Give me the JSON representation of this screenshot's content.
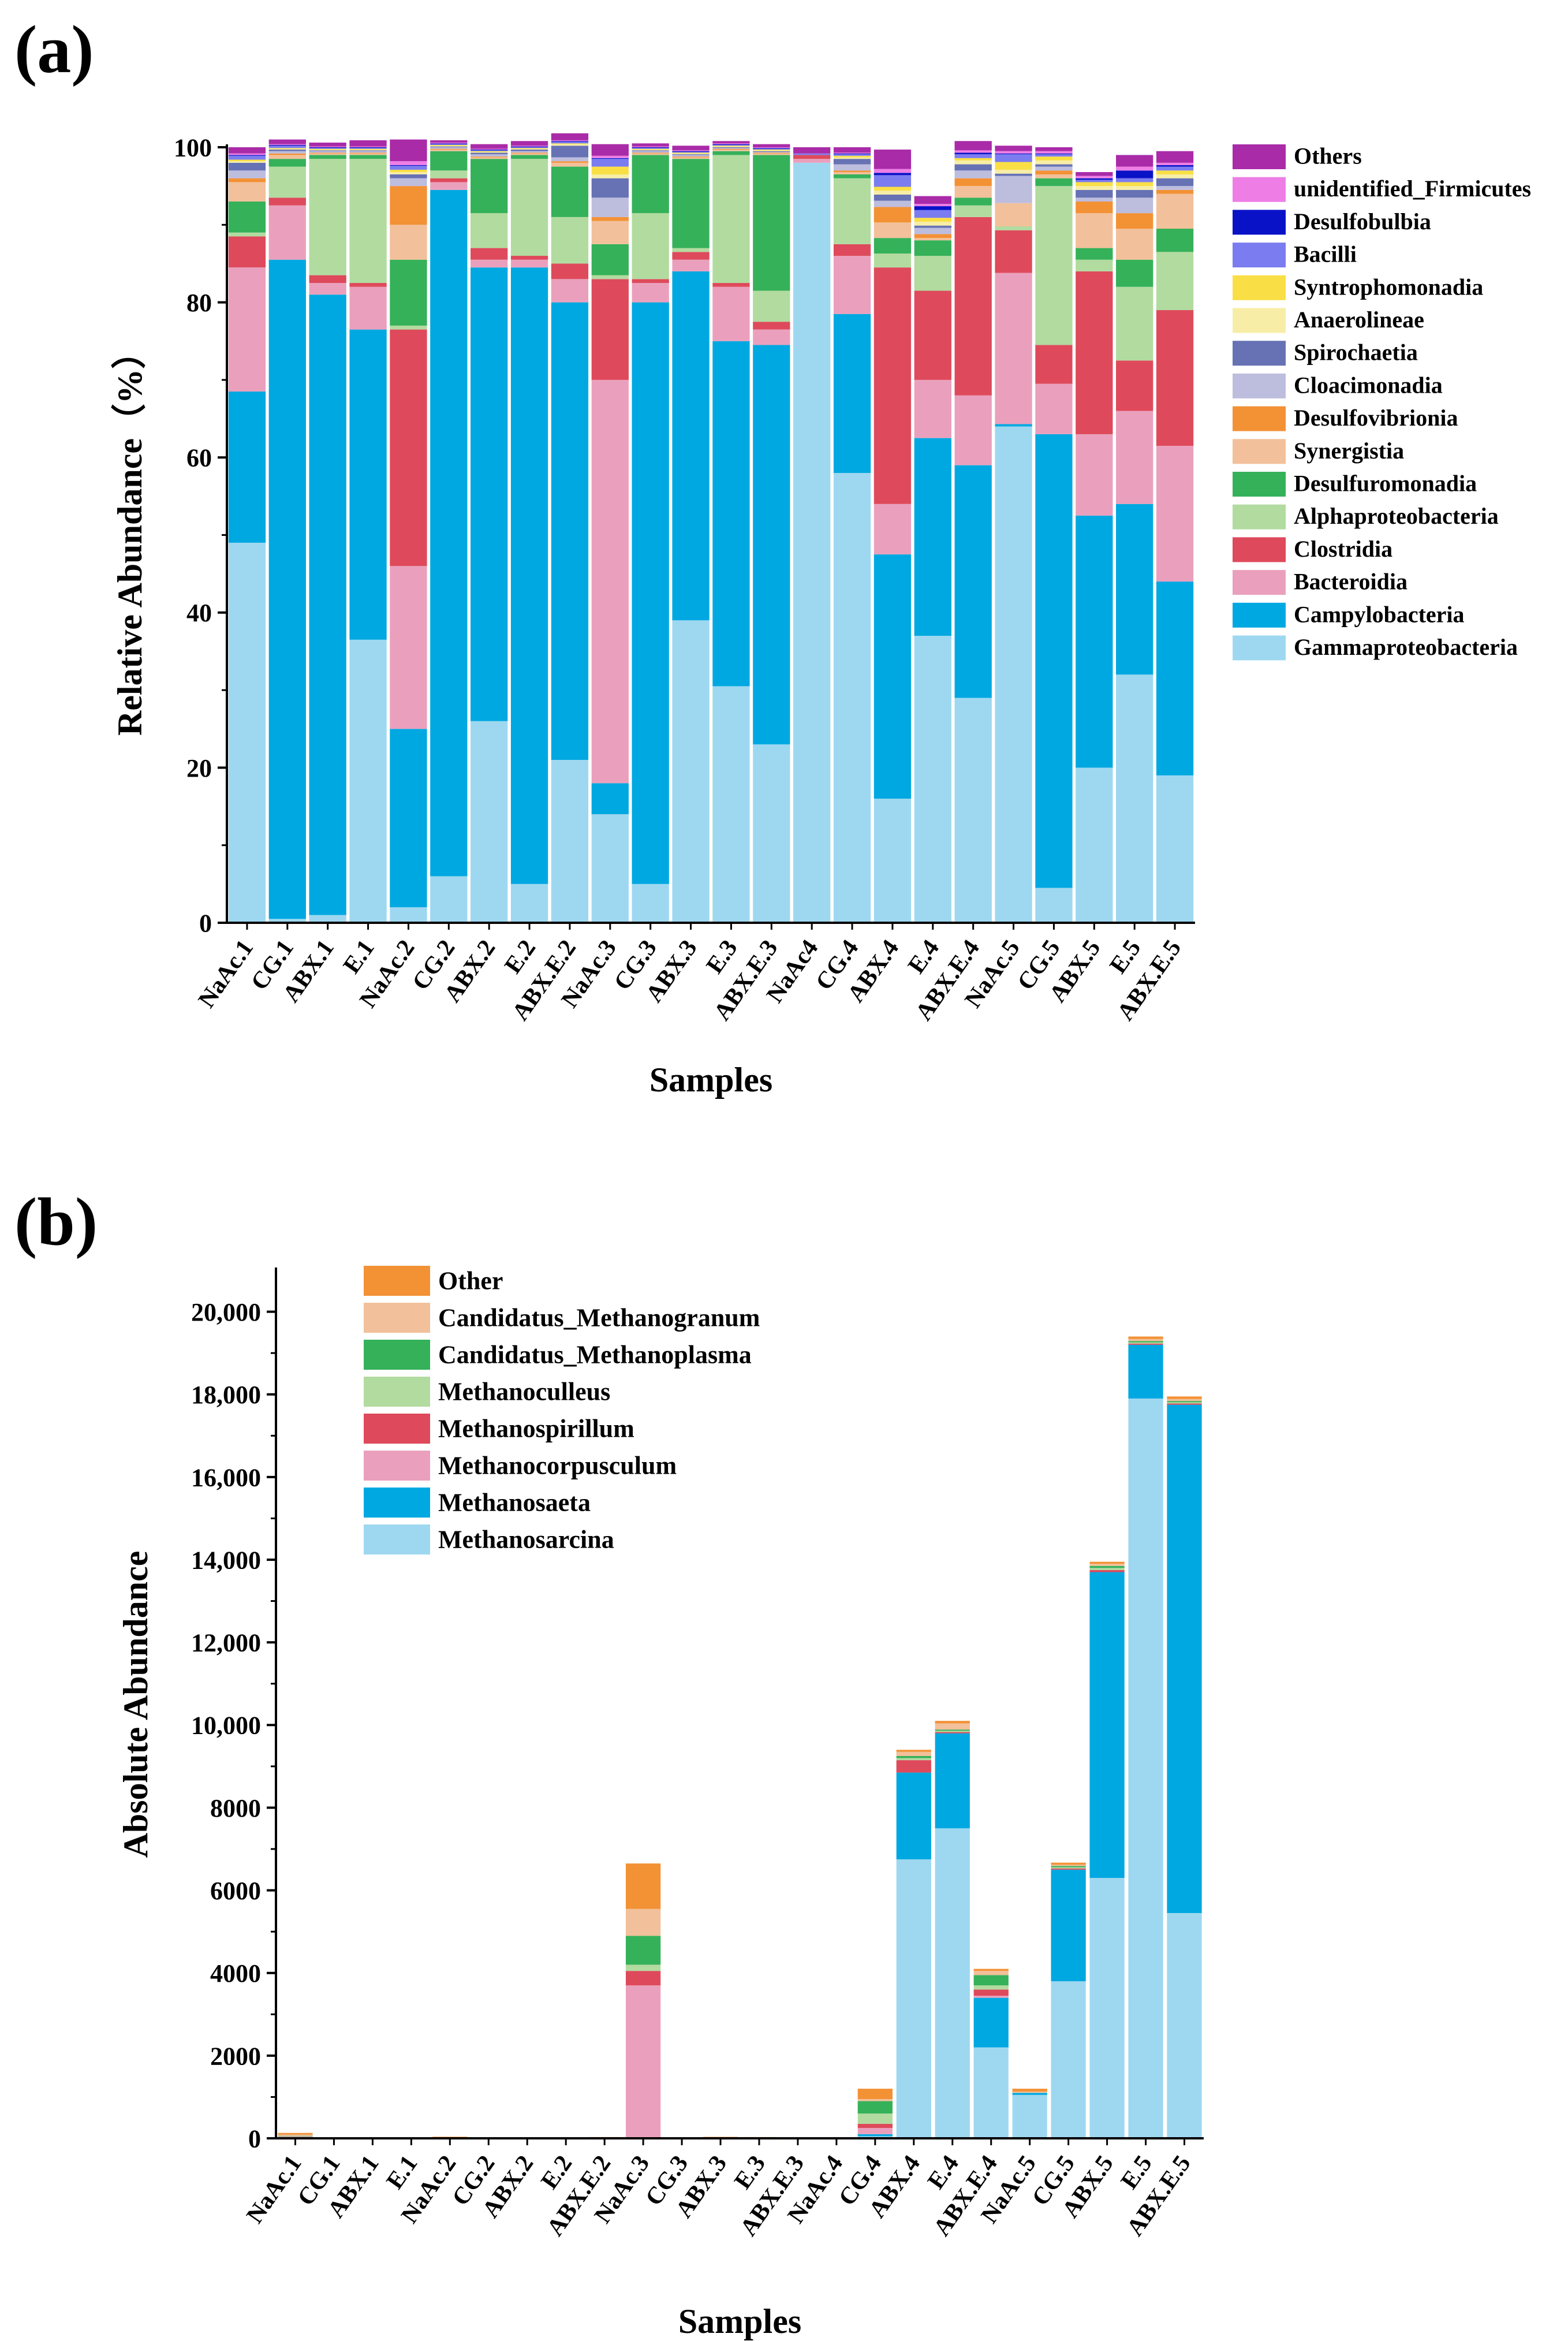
{
  "panels": [
    {
      "label": "(a)"
    },
    {
      "label": "(b)"
    }
  ],
  "chart_data": [
    {
      "type": "bar",
      "stacked": true,
      "title": "",
      "xlabel": "Samples",
      "ylabel": "Relative Abundance（%）",
      "ylim": [
        0,
        100
      ],
      "yticks": [
        0,
        20,
        40,
        60,
        80,
        100
      ],
      "ytick_labels": [
        "0",
        "20",
        "40",
        "60",
        "80",
        "100"
      ],
      "legend_position": "right",
      "legend_order": [
        "Others",
        "unidentified_Firmicutes",
        "Desulfobulbia",
        "Bacilli",
        "Syntrophomonadia",
        "Anaerolineae",
        "Spirochaetia",
        "Cloacimonadia",
        "Desulfovibrionia",
        "Synergistia",
        "Desulfuromonadia",
        "Alphaproteobacteria",
        "Clostridia",
        "Bacteroidia",
        "Campylobacteria",
        "Gammaproteobacteria"
      ],
      "categories": [
        "NaAc.1",
        "CG.1",
        "ABX.1",
        "E.1",
        "NaAc.2",
        "CG.2",
        "ABX.2",
        "E.2",
        "ABX.E.2",
        "NaAc.3",
        "CG.3",
        "ABX.3",
        "E.3",
        "ABX.E.3",
        "NaAc4",
        "CG.4",
        "ABX.4",
        "E.4",
        "ABX.E.4",
        "NaAc.5",
        "CG.5",
        "ABX.5",
        "E.5",
        "ABX.E.5"
      ],
      "series": [
        {
          "name": "Gammaproteobacteria",
          "color": "#9ED8F0",
          "values": [
            49,
            0.5,
            1,
            36.5,
            2,
            6,
            26,
            5,
            21,
            14,
            5,
            39,
            30.5,
            23,
            98,
            58,
            16,
            37,
            29,
            64,
            4.5,
            20,
            32,
            19
          ]
        },
        {
          "name": "Campylobacteria",
          "color": "#00A8E1",
          "values": [
            19.5,
            85,
            80,
            40,
            23,
            88.5,
            58.5,
            79.5,
            59,
            4,
            75,
            45,
            44.5,
            51.5,
            0,
            20.5,
            31.5,
            25.5,
            30,
            0.3,
            58.5,
            32.5,
            22,
            25
          ]
        },
        {
          "name": "Bacteroidia",
          "color": "#EAA0BD",
          "values": [
            16,
            7,
            1.5,
            5.5,
            21,
            1,
            1,
            1,
            3,
            52,
            2.5,
            1.5,
            7,
            2,
            0.5,
            7.5,
            6.5,
            7.5,
            9,
            19.5,
            6.5,
            10.5,
            12,
            17.5
          ]
        },
        {
          "name": "Clostridia",
          "color": "#DE4A5B",
          "values": [
            4,
            1,
            1,
            0.5,
            30.5,
            0.5,
            1.5,
            0.5,
            2,
            13,
            0.5,
            1,
            0.5,
            1,
            0.5,
            1.5,
            30.5,
            11.5,
            23,
            5.5,
            5,
            21,
            6.5,
            17.5
          ]
        },
        {
          "name": "Alphaproteobacteria",
          "color": "#B2DBA0",
          "values": [
            0.5,
            4,
            15,
            16,
            0.5,
            1,
            4.5,
            12.5,
            6,
            0.5,
            8.5,
            0.5,
            16.5,
            4,
            0,
            8.5,
            1.8,
            4.5,
            1.5,
            0.5,
            20.5,
            1.5,
            9.5,
            7.5
          ]
        },
        {
          "name": "Desulfuromonadia",
          "color": "#35B15A",
          "values": [
            4,
            1,
            0.5,
            0.5,
            8.5,
            2.5,
            7,
            0.5,
            6.5,
            4,
            7.5,
            11.5,
            0.5,
            17.5,
            0,
            0.5,
            2,
            2,
            1,
            0,
            1,
            1.5,
            3.5,
            3
          ]
        },
        {
          "name": "Synergistia",
          "color": "#F2C09A",
          "values": [
            2.5,
            0.5,
            0.2,
            0.2,
            4.5,
            0.2,
            0.2,
            0.2,
            0.5,
            3,
            0.2,
            0.2,
            0.2,
            0.2,
            0,
            0.3,
            2,
            0.3,
            1.5,
            3,
            0.5,
            4.5,
            4,
            4.5
          ]
        },
        {
          "name": "Desulfovibrionia",
          "color": "#F39135",
          "values": [
            0.5,
            0.2,
            0.1,
            0.1,
            5,
            0.1,
            0.1,
            0.1,
            0.2,
            0.5,
            0.1,
            0.1,
            0.1,
            0.1,
            0,
            0.2,
            2,
            0.5,
            1,
            0,
            0.5,
            1.5,
            2,
            0.5
          ]
        },
        {
          "name": "Cloacimonadia",
          "color": "#BDBDDE",
          "values": [
            1,
            0.3,
            0.2,
            0.2,
            1,
            0.2,
            0.3,
            0.2,
            0.5,
            2.5,
            0.2,
            0.2,
            0.1,
            0.1,
            0,
            0.8,
            0.8,
            0.8,
            1,
            3.5,
            0.5,
            0.5,
            2,
            0.5
          ]
        },
        {
          "name": "Spirochaetia",
          "color": "#6672B4",
          "values": [
            1,
            0.2,
            0.1,
            0.1,
            0.5,
            0.1,
            0.2,
            0.2,
            1.5,
            2.5,
            0.1,
            0.1,
            0.1,
            0.1,
            0,
            0.7,
            0.8,
            0.3,
            0.8,
            0.3,
            0.3,
            1,
            1,
            1
          ]
        },
        {
          "name": "Anaerolineae",
          "color": "#F7EDA6",
          "values": [
            0.2,
            0.1,
            0.1,
            0.1,
            0.3,
            0.1,
            0.1,
            0.1,
            0.2,
            0.5,
            0.1,
            0.1,
            0.1,
            0.1,
            0,
            0.2,
            0.5,
            0.5,
            0.5,
            0.5,
            0.5,
            0.5,
            0.5,
            0.5
          ]
        },
        {
          "name": "Syntrophomonadia",
          "color": "#F9DF45",
          "values": [
            0.2,
            0.1,
            0.1,
            0.1,
            0.3,
            0.1,
            0.1,
            0.1,
            0.1,
            1,
            0.1,
            0.1,
            0.1,
            0.1,
            0,
            0.2,
            0.5,
            0.5,
            0.3,
            1,
            0.5,
            0.5,
            0.5,
            0.5
          ]
        },
        {
          "name": "Bacilli",
          "color": "#7B7CF0",
          "values": [
            0.5,
            0.3,
            0.1,
            0.1,
            0.5,
            0.1,
            0.1,
            0.1,
            0.2,
            1,
            0.1,
            0.1,
            0.1,
            0.1,
            0.2,
            0.2,
            1.5,
            1,
            0.5,
            1,
            0.3,
            0.3,
            0.5,
            0.5
          ]
        },
        {
          "name": "Desulfobulbia",
          "color": "#0A12C8",
          "values": [
            0.1,
            0.1,
            0.1,
            0.1,
            0.1,
            0.1,
            0.1,
            0.1,
            0.1,
            0.1,
            0.1,
            0.1,
            0.1,
            0.1,
            0,
            0.1,
            0.3,
            0.5,
            0.2,
            0.1,
            0.1,
            0.2,
            1,
            0.2
          ]
        },
        {
          "name": "unidentified_Firmicutes",
          "color": "#EE7EE6",
          "values": [
            0.2,
            0.1,
            0.1,
            0.1,
            0.5,
            0.1,
            0.1,
            0.1,
            0.1,
            0.3,
            0.1,
            0.1,
            0.1,
            0.1,
            0,
            0.1,
            0.5,
            0.3,
            0.3,
            0.3,
            0.3,
            0.3,
            0.5,
            0.3
          ]
        },
        {
          "name": "Others",
          "color": "#A92BA8",
          "values": [
            0.8,
            0.6,
            0.5,
            0.8,
            2.8,
            0.3,
            0.6,
            0.6,
            0.9,
            1.5,
            0.4,
            0.6,
            0.3,
            0.4,
            0.8,
            0.7,
            2.5,
            1.0,
            1.2,
            0.7,
            0.5,
            0.5,
            1.5,
            1.5
          ]
        }
      ]
    },
    {
      "type": "bar",
      "stacked": true,
      "title": "",
      "xlabel": "Samples",
      "ylabel": "Absolute Abundance",
      "ylim": [
        0,
        21000
      ],
      "yticks": [
        0,
        2000,
        4000,
        6000,
        8000,
        10000,
        12000,
        14000,
        16000,
        18000,
        20000
      ],
      "ytick_labels": [
        "0",
        "2000",
        "4000",
        "6000",
        "8000",
        "10,000",
        "12,000",
        "14,000",
        "16,000",
        "18,000",
        "20,000"
      ],
      "legend_position": "top-left",
      "legend_order": [
        "Other",
        "Candidatus_Methanogranum",
        "Candidatus_Methanoplasma",
        "Methanoculleus",
        "Methanospirillum",
        "Methanocorpusculum",
        "Methanosaeta",
        "Methanosarcina"
      ],
      "categories": [
        "NaAc.1",
        "CG.1",
        "ABX.1",
        "E.1",
        "NaAc.2",
        "CG.2",
        "ABX.2",
        "E.2",
        "ABX.E.2",
        "NaAc.3",
        "CG.3",
        "ABX.3",
        "E.3",
        "ABX.E.3",
        "NaAc.4",
        "CG.4",
        "ABX.4",
        "E.4",
        "ABX.E.4",
        "NaAc.5",
        "CG.5",
        "ABX.5",
        "E.5",
        "ABX.E.5"
      ],
      "series": [
        {
          "name": "Methanosarcina",
          "color": "#9ED8F0",
          "values": [
            20,
            5,
            5,
            5,
            10,
            5,
            5,
            5,
            10,
            0,
            5,
            10,
            10,
            5,
            5,
            50,
            6750,
            7500,
            2200,
            1050,
            3800,
            6300,
            17900,
            5450
          ]
        },
        {
          "name": "Methanosaeta",
          "color": "#00A8E1",
          "values": [
            10,
            5,
            5,
            5,
            10,
            5,
            5,
            5,
            10,
            0,
            5,
            10,
            10,
            5,
            5,
            50,
            2100,
            2300,
            1200,
            50,
            2700,
            7400,
            1300,
            12300
          ]
        },
        {
          "name": "Methanocorpusculum",
          "color": "#EAA0BD",
          "values": [
            10,
            0,
            0,
            0,
            5,
            0,
            0,
            0,
            0,
            3700,
            0,
            0,
            0,
            0,
            0,
            150,
            0,
            0,
            50,
            0,
            0,
            0,
            0,
            0
          ]
        },
        {
          "name": "Methanospirillum",
          "color": "#DE4A5B",
          "values": [
            5,
            0,
            0,
            0,
            0,
            0,
            0,
            0,
            0,
            350,
            0,
            0,
            0,
            0,
            0,
            100,
            300,
            30,
            150,
            0,
            30,
            50,
            30,
            30
          ]
        },
        {
          "name": "Methanoculleus",
          "color": "#B2DBA0",
          "values": [
            5,
            0,
            0,
            0,
            0,
            0,
            0,
            0,
            0,
            150,
            0,
            0,
            0,
            0,
            0,
            250,
            50,
            30,
            100,
            0,
            30,
            50,
            30,
            30
          ]
        },
        {
          "name": "Candidatus_Methanoplasma",
          "color": "#35B15A",
          "values": [
            10,
            0,
            0,
            0,
            0,
            0,
            0,
            0,
            0,
            700,
            0,
            0,
            0,
            0,
            0,
            300,
            50,
            30,
            250,
            0,
            30,
            50,
            30,
            30
          ]
        },
        {
          "name": "Candidatus_Methanogranum",
          "color": "#F2C09A",
          "values": [
            30,
            0,
            0,
            0,
            5,
            0,
            0,
            0,
            5,
            650,
            0,
            5,
            5,
            0,
            0,
            50,
            100,
            150,
            100,
            30,
            30,
            50,
            50,
            50
          ]
        },
        {
          "name": "Other",
          "color": "#F39135",
          "values": [
            40,
            0,
            0,
            0,
            10,
            0,
            0,
            0,
            5,
            1100,
            0,
            10,
            5,
            0,
            0,
            250,
            50,
            60,
            50,
            70,
            50,
            50,
            60,
            60
          ]
        }
      ]
    }
  ]
}
